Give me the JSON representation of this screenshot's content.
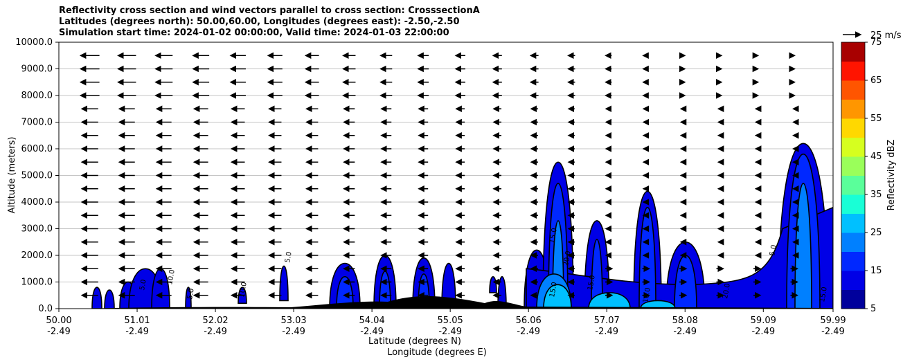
{
  "chart_data": {
    "type": "contour",
    "title_lines": [
      "Reflectivity cross section and wind vectors parallel to cross section: CrosssectionA",
      "Latitudes (degrees north): 50.00,60.00, Longitudes (degrees east): -2.50,-2.50",
      "Simulation start time: 2024-01-02 00:00:00, Valid time: 2024-01-03 22:00:00"
    ],
    "xlabel": "Latitude (degrees N)",
    "xlabel2": "Longitude (degrees E)",
    "ylabel": "Altitude (meters)",
    "xlim": [
      50.0,
      59.99
    ],
    "ylim": [
      0,
      10000
    ],
    "x_ticks": [
      {
        "lat": "50.00",
        "lon": "-2.49"
      },
      {
        "lat": "51.01",
        "lon": "-2.49"
      },
      {
        "lat": "52.02",
        "lon": "-2.49"
      },
      {
        "lat": "53.03",
        "lon": "-2.49"
      },
      {
        "lat": "54.04",
        "lon": "-2.49"
      },
      {
        "lat": "55.05",
        "lon": "-2.49"
      },
      {
        "lat": "56.06",
        "lon": "-2.49"
      },
      {
        "lat": "57.07",
        "lon": "-2.49"
      },
      {
        "lat": "58.08",
        "lon": "-2.49"
      },
      {
        "lat": "59.09",
        "lon": "-2.49"
      },
      {
        "lat": "59.99",
        "lon": "-2.49"
      }
    ],
    "y_ticks": [
      "0.0",
      "1000.0",
      "2000.0",
      "3000.0",
      "4000.0",
      "5000.0",
      "6000.0",
      "7000.0",
      "8000.0",
      "9000.0",
      "10000.0"
    ],
    "grid": "horizontal",
    "colorbar": {
      "label": "Reflectivity dBZ",
      "ticks": [
        "5",
        "15",
        "25",
        "35",
        "45",
        "55",
        "65",
        "75"
      ],
      "levels": [
        5,
        10,
        15,
        20,
        25,
        30,
        35,
        40,
        45,
        50,
        55,
        60,
        65,
        70,
        75
      ],
      "colors": [
        "#00009c",
        "#0000e6",
        "#0028ff",
        "#0080ff",
        "#00c0ff",
        "#19ffd6",
        "#5aff9a",
        "#9aff5a",
        "#d6ff1f",
        "#ffd800",
        "#ff9600",
        "#ff5500",
        "#ff1400",
        "#a80000"
      ]
    },
    "wind_key_label": "25 m/s",
    "contour_labels": [
      "5.0",
      "10.0",
      "15.0",
      "20.0",
      "25.0"
    ]
  }
}
